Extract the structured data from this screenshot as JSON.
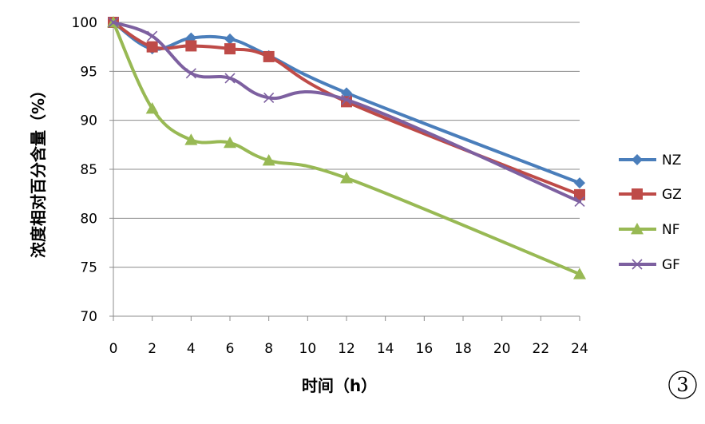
{
  "chart_data": {
    "type": "line",
    "x": [
      0,
      2,
      4,
      6,
      8,
      12,
      24
    ],
    "xticks": [
      0,
      2,
      4,
      6,
      8,
      10,
      12,
      14,
      16,
      18,
      20,
      22,
      24
    ],
    "xlabel": "时间（h）",
    "ylabel": "浓度相对百分含量（%）",
    "ylim": [
      70,
      100
    ],
    "yticks": [
      70,
      75,
      80,
      85,
      90,
      95,
      100
    ],
    "grid": true,
    "legend_position": "right",
    "series": [
      {
        "name": "NZ",
        "color": "#4a7ebb",
        "marker": "diamond",
        "values": [
          100,
          97.3,
          98.4,
          98.3,
          96.6,
          92.8,
          83.6
        ]
      },
      {
        "name": "GZ",
        "color": "#be4b48",
        "marker": "square",
        "values": [
          100,
          97.5,
          97.6,
          97.3,
          96.5,
          91.9,
          82.4
        ]
      },
      {
        "name": "NF",
        "color": "#98b954",
        "marker": "triangle",
        "values": [
          100,
          91.2,
          88.0,
          87.7,
          85.9,
          84.1,
          74.3
        ]
      },
      {
        "name": "GF",
        "color": "#7d60a0",
        "marker": "x",
        "values": [
          100,
          98.6,
          94.8,
          94.3,
          92.3,
          92.1,
          81.7
        ]
      }
    ],
    "annotation": "3"
  }
}
